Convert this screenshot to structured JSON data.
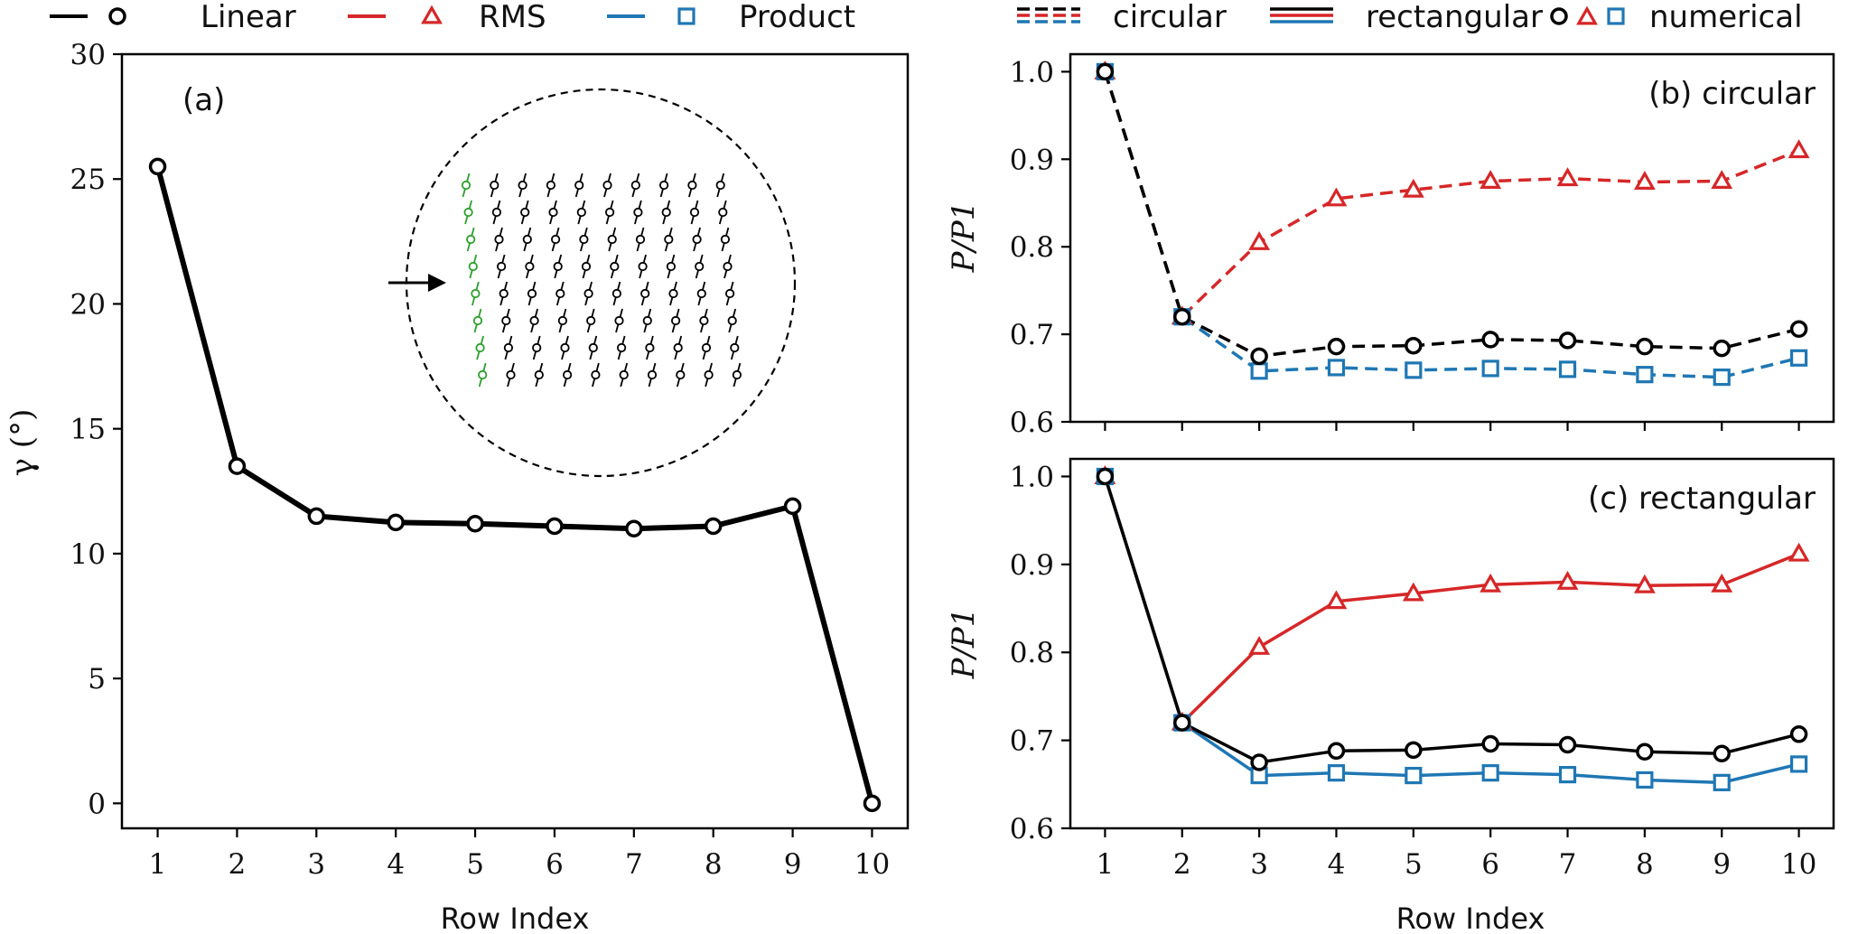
{
  "legend_left": [
    {
      "label": "Linear",
      "color": "#000000",
      "marker": "circle"
    },
    {
      "label": "RMS",
      "color": "#d62728",
      "marker": "triangle"
    },
    {
      "label": "Product",
      "color": "#1f77b4",
      "marker": "square"
    }
  ],
  "legend_right": [
    {
      "label": "circular",
      "style": "dashed"
    },
    {
      "label": "rectangular",
      "style": "solid"
    },
    {
      "label": "numerical",
      "style": "markers"
    }
  ],
  "chart_data": [
    {
      "id": "a",
      "type": "line",
      "panel_label": "(a)",
      "xlabel": "Row Index",
      "ylabel": "γ (°)",
      "x": [
        1,
        2,
        3,
        4,
        5,
        6,
        7,
        8,
        9,
        10
      ],
      "ylim": [
        -1,
        30
      ],
      "yticks": [
        0,
        5,
        10,
        15,
        20,
        25,
        30
      ],
      "series": [
        {
          "name": "Linear",
          "color": "#000000",
          "marker": "circle",
          "dash": false,
          "values": [
            25.5,
            13.5,
            11.5,
            11.25,
            11.2,
            11.1,
            11.0,
            11.1,
            11.9,
            0.0
          ]
        }
      ]
    },
    {
      "id": "b",
      "type": "line",
      "panel_label": "(b) circular",
      "xlabel": "",
      "ylabel": "P/P1",
      "x": [
        1,
        2,
        3,
        4,
        5,
        6,
        7,
        8,
        9,
        10
      ],
      "ylim": [
        0.6,
        1.02
      ],
      "yticks": [
        0.6,
        0.7,
        0.8,
        0.9,
        1.0
      ],
      "series": [
        {
          "name": "RMS",
          "color": "#d62728",
          "marker": "triangle",
          "dash": true,
          "values": [
            1.0,
            0.72,
            0.805,
            0.855,
            0.865,
            0.875,
            0.878,
            0.874,
            0.875,
            0.91
          ]
        },
        {
          "name": "Product",
          "color": "#1f77b4",
          "marker": "square",
          "dash": true,
          "values": [
            1.0,
            0.72,
            0.658,
            0.662,
            0.659,
            0.661,
            0.66,
            0.654,
            0.651,
            0.673
          ]
        },
        {
          "name": "Linear",
          "color": "#000000",
          "marker": "circle",
          "dash": true,
          "values": [
            1.0,
            0.72,
            0.675,
            0.686,
            0.687,
            0.694,
            0.693,
            0.686,
            0.684,
            0.706
          ]
        }
      ]
    },
    {
      "id": "c",
      "type": "line",
      "panel_label": "(c) rectangular",
      "xlabel": "Row Index",
      "ylabel": "P/P1",
      "x": [
        1,
        2,
        3,
        4,
        5,
        6,
        7,
        8,
        9,
        10
      ],
      "ylim": [
        0.6,
        1.02
      ],
      "yticks": [
        0.6,
        0.7,
        0.8,
        0.9,
        1.0
      ],
      "series": [
        {
          "name": "RMS",
          "color": "#d62728",
          "marker": "triangle",
          "dash": false,
          "values": [
            1.0,
            0.72,
            0.806,
            0.858,
            0.867,
            0.877,
            0.88,
            0.876,
            0.877,
            0.912
          ]
        },
        {
          "name": "Product",
          "color": "#1f77b4",
          "marker": "square",
          "dash": false,
          "values": [
            1.0,
            0.72,
            0.66,
            0.663,
            0.66,
            0.663,
            0.661,
            0.655,
            0.652,
            0.673
          ]
        },
        {
          "name": "Linear",
          "color": "#000000",
          "marker": "circle",
          "dash": false,
          "values": [
            1.0,
            0.72,
            0.675,
            0.688,
            0.689,
            0.696,
            0.695,
            0.687,
            0.685,
            0.707
          ]
        }
      ]
    }
  ]
}
